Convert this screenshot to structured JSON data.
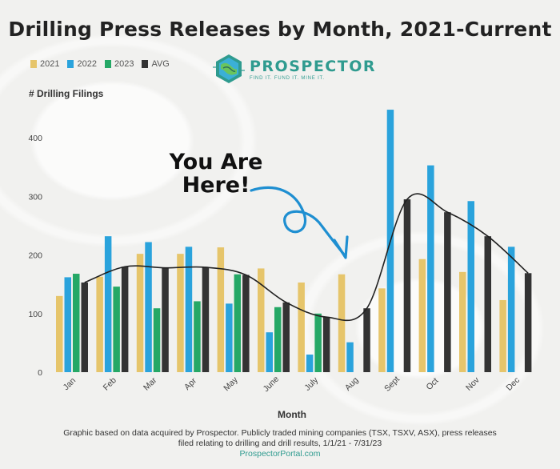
{
  "title": "Drilling Press Releases by Month, 2021-Current",
  "logo": {
    "name": "PROSPECTOR",
    "tagline": "FIND IT. FUND IT. MINE IT."
  },
  "annotation": {
    "line1": "You Are",
    "line2": "Here!"
  },
  "footnote": {
    "line1": "Graphic based on data acquired by Prospector. Publicly traded mining companies (TSX, TSXV, ASX), press releases",
    "line2": "filed relating to drilling and drill results, 1/1/21 - 7/31/23",
    "line3": "ProspectorPortal.com"
  },
  "colors": {
    "y2021": "#e6c56b",
    "y2022": "#2aa3dc",
    "y2023": "#25a866",
    "avg": "#333333",
    "brand": "#2f9b8f"
  },
  "chart_data": {
    "type": "bar",
    "title": "Drilling Press Releases by Month, 2021-Current",
    "xlabel": "Month",
    "ylabel": "# Drilling Filings",
    "ylim": [
      0,
      450
    ],
    "yticks": [
      0,
      100,
      200,
      300,
      400
    ],
    "grid": false,
    "legend_position": "top-left",
    "categories": [
      "Jan",
      "Feb",
      "Mar",
      "Apr",
      "May",
      "June",
      "July",
      "Aug",
      "Sept",
      "Oct",
      "Nov",
      "Dec"
    ],
    "series": [
      {
        "name": "2021",
        "values": [
          130,
          163,
          202,
          202,
          213,
          177,
          153,
          167,
          143,
          193,
          171,
          123
        ]
      },
      {
        "name": "2022",
        "values": [
          162,
          232,
          222,
          214,
          117,
          68,
          30,
          51,
          448,
          353,
          292,
          214
        ]
      },
      {
        "name": "2023",
        "values": [
          168,
          146,
          109,
          121,
          167,
          111,
          100,
          null,
          null,
          null,
          null,
          null
        ]
      },
      {
        "name": "AVG",
        "values": [
          153,
          180,
          178,
          179,
          166,
          119,
          94,
          109,
          295,
          273,
          232,
          169
        ]
      }
    ],
    "trend_line": "AVG"
  }
}
